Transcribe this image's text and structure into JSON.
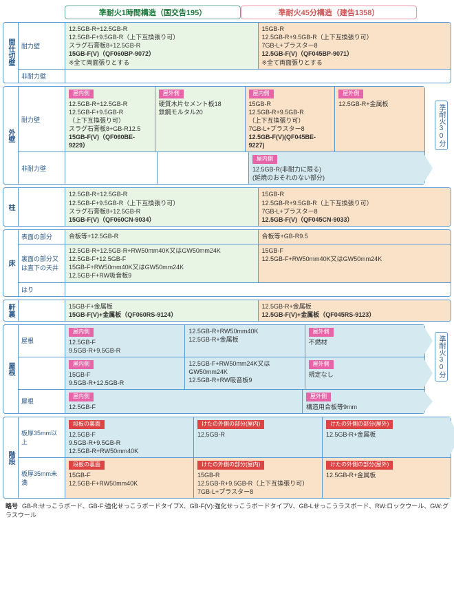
{
  "headers": {
    "green": "準耐火1時間構造（国交告195）",
    "orange": "準耐火45分構造（建告1358）"
  },
  "sideLabels": {
    "top": "準耐火30分",
    "bot": "準耐火30分"
  },
  "colors": {
    "green": "#e8f4e4",
    "orange": "#fae2c8",
    "blue": "#d5e9f0"
  },
  "blocks": [
    {
      "vlab": "間仕切壁",
      "rows": [
        {
          "sub": "耐力壁",
          "cells": [
            {
              "bg": "green",
              "lines": [
                "12.5GB-R+12.5GB-R",
                "12.5GB-F+9.5GB-R（上下互換張り可）",
                "スラグ石膏板8+12.5GB-R",
                "<b>15GB-F(V)（QF060BP-9072）</b>",
                "※全て両面張りとする"
              ],
              "rowspan": 2
            },
            {
              "bg": "orange",
              "lines": [
                "15GB-R",
                "12.5GB-R+9.5GB-R（上下互換張り可）",
                "7GB-L+プラスター8",
                "<b>12.5GB-F(V)（QF045BP-9071）</b>",
                "※全て両面張りとする"
              ],
              "rowspan": 2
            }
          ]
        },
        {
          "sub": "非耐力壁",
          "cells": []
        }
      ]
    },
    {
      "vlab": "外壁",
      "rows": [
        {
          "sub": "耐力壁",
          "cells": [
            {
              "bg": "green",
              "tag": "屋内側",
              "lines": [
                "12.5GB-R+12.5GB-R",
                "12.5GB-F+9.5GB-R",
                "（上下互換張り可）",
                "スラグ石膏板8+GB-R12.5",
                "<b>15GB-F(V)（QF060BE-9229）</b>"
              ],
              "rowspan": 2
            },
            {
              "bg": "green",
              "tag": "屋外側",
              "lines": [
                "硬質木片セメント板18",
                "鉄鋼モルタル20"
              ],
              "rowspan": 2
            },
            {
              "bg": "orange",
              "tag": "屋内側",
              "lines": [
                "15GB-R",
                "12.5GB-R+9.5GB-R",
                "（上下互換張り可）",
                "7GB-L+プラスター8",
                "<b>12.5GB-F(V)(QF045BE-9227)</b>"
              ]
            },
            {
              "bg": "orange",
              "tag": "屋外側",
              "lines": [
                "12.5GB-R+金属板"
              ]
            }
          ]
        },
        {
          "sub": "非耐力壁",
          "cells": [
            {
              "skip": 2
            },
            {
              "bg": "blue",
              "tag": "屋内側",
              "lines": [
                "12.5GB-R(非耐力に限る)",
                "(延焼のおそれのない部分)"
              ],
              "arrow": true,
              "span": 2
            }
          ]
        }
      ],
      "sideLabel": "top"
    },
    {
      "vlab": "柱",
      "rows": [
        {
          "sub": "",
          "cells": [
            {
              "bg": "green",
              "lines": [
                "12.5GB-R+12.5GB-R",
                "12.5GB-F+9.5GB-R（上下互換張り可）",
                "スラグ石膏板8+12.5GB-R",
                "<b>15GB-F(V)（QF060CN-9034）</b>"
              ]
            },
            {
              "bg": "orange",
              "lines": [
                "15GB-R",
                "12.5GB-R+9.5GB-R（上下互換張り可）",
                "7GB-L+プラスター8",
                "<b>12.5GB-F(V)（QF045CN-9033）</b>"
              ]
            }
          ]
        }
      ]
    },
    {
      "vlab": "床",
      "rows": [
        {
          "sub": "表面の部分",
          "cells": [
            {
              "bg": "green",
              "lines": [
                "合板等+12.5GB-R"
              ]
            },
            {
              "bg": "orange",
              "lines": [
                "合板等+GB-R9.5"
              ]
            }
          ]
        },
        {
          "sub": "裏面の部分又は直下の天井",
          "cells": [
            {
              "bg": "green",
              "lines": [
                "12.5GB-R+12.5GB-R+RW50mm40K又はGW50mm24K",
                "12.5GB-F+12.5GB-F",
                "15GB-F+RW50mm40K又はGW50mm24K",
                "12.5GB-F+RW吸音板9"
              ],
              "rowspan": 2
            },
            {
              "bg": "orange",
              "lines": [
                "15GB-F",
                "12.5GB-F+RW50mm40K又はGW50mm24K"
              ],
              "rowspan": 2
            }
          ]
        },
        {
          "sub": "はり",
          "cells": []
        }
      ]
    },
    {
      "vlab": "軒裏",
      "rows": [
        {
          "sub": "",
          "cells": [
            {
              "bg": "green",
              "lines": [
                "15GB-F+金属板",
                "<b>15GB-F(V)+金属板（QF060RS-9124）</b>"
              ]
            },
            {
              "bg": "orange",
              "lines": [
                "12.5GB-R+金属板",
                "<b>12.5GB-F(V)+金属板（QF045RS-9123）</b>"
              ]
            }
          ]
        }
      ]
    },
    {
      "vlab": "屋根",
      "novlab": true,
      "rows": [
        {
          "sub": "屋根",
          "cells": [
            {
              "bg": "blue",
              "tag": "屋内側",
              "lines": [
                "12.5GB-F",
                "9.5GB-R+9.5GB-R"
              ]
            },
            {
              "bg": "blue",
              "lines": [
                "12.5GB-R+RW50mm40K",
                "12.5GB-R+金属板"
              ]
            },
            {
              "bg": "blue",
              "tag": "屋外側",
              "lines": [
                "不燃材"
              ],
              "arrow": true
            }
          ]
        },
        {
          "sub": "",
          "cells": [
            {
              "bg": "blue",
              "tag": "屋内側",
              "lines": [
                "15GB-F",
                "9.5GB-R+12.5GB-R"
              ]
            },
            {
              "bg": "blue",
              "lines": [
                "12.5GB-F+RW50mm24K又は",
                "GW50mm24K",
                "12.5GB-R+RW吸音板9"
              ]
            },
            {
              "bg": "blue",
              "tag": "屋外側",
              "lines": [
                "規定なし"
              ],
              "arrow": true
            }
          ]
        },
        {
          "sub": "屋根",
          "cells": [
            {
              "bg": "blue",
              "tag": "屋内側",
              "lines": [
                "12.5GB-F"
              ],
              "span": 2
            },
            {
              "bg": "blue",
              "tag": "屋外側",
              "lines": [
                "構造用合板等9mm"
              ],
              "arrow": true
            }
          ]
        }
      ],
      "sideLabel": "bot"
    },
    {
      "vlab": "階段",
      "rows": [
        {
          "sub": "板厚35mm以上",
          "cells": [
            {
              "bg": "blue",
              "tagR": "段板の裏面",
              "lines": [
                "12.5GB-F",
                "9.5GB-R+9.5GB-R",
                "12.5GB-R+RW50mm40K"
              ]
            },
            {
              "bg": "blue",
              "tagR": "けたの外側の部分(屋内)",
              "lines": [
                "12.5GB-R"
              ]
            },
            {
              "bg": "blue",
              "tagR": "けたの外側の部分(屋外)",
              "lines": [
                "12.5GB-R+金属板"
              ],
              "arrow": true
            }
          ]
        },
        {
          "sub": "板厚35mm未満",
          "cells": [
            {
              "bg": "orange",
              "tagR": "段板の裏面",
              "lines": [
                "15GB-F",
                "12.5GB-F+RW50mm40K"
              ]
            },
            {
              "bg": "orange",
              "tagR": "けたの外側の部分(屋内)",
              "lines": [
                "15GB-R",
                "12.5GB-R+9.5GB-R（上下互換張り可）",
                "7GB-L+プラスター8"
              ]
            },
            {
              "bg": "orange",
              "tagR": "けたの外側の部分(屋外)",
              "lines": [
                "12.5GB-R+金属板"
              ]
            }
          ]
        }
      ]
    }
  ],
  "foot": {
    "label": "略号",
    "text": "GB-R:せっこうボード、GB-F:強化せっこうボードタイプX、GB-F(V):強化せっこうボードタイプV、GB-Lせっこうラスボード、RW:ロックウール、GW:グラスウール"
  }
}
